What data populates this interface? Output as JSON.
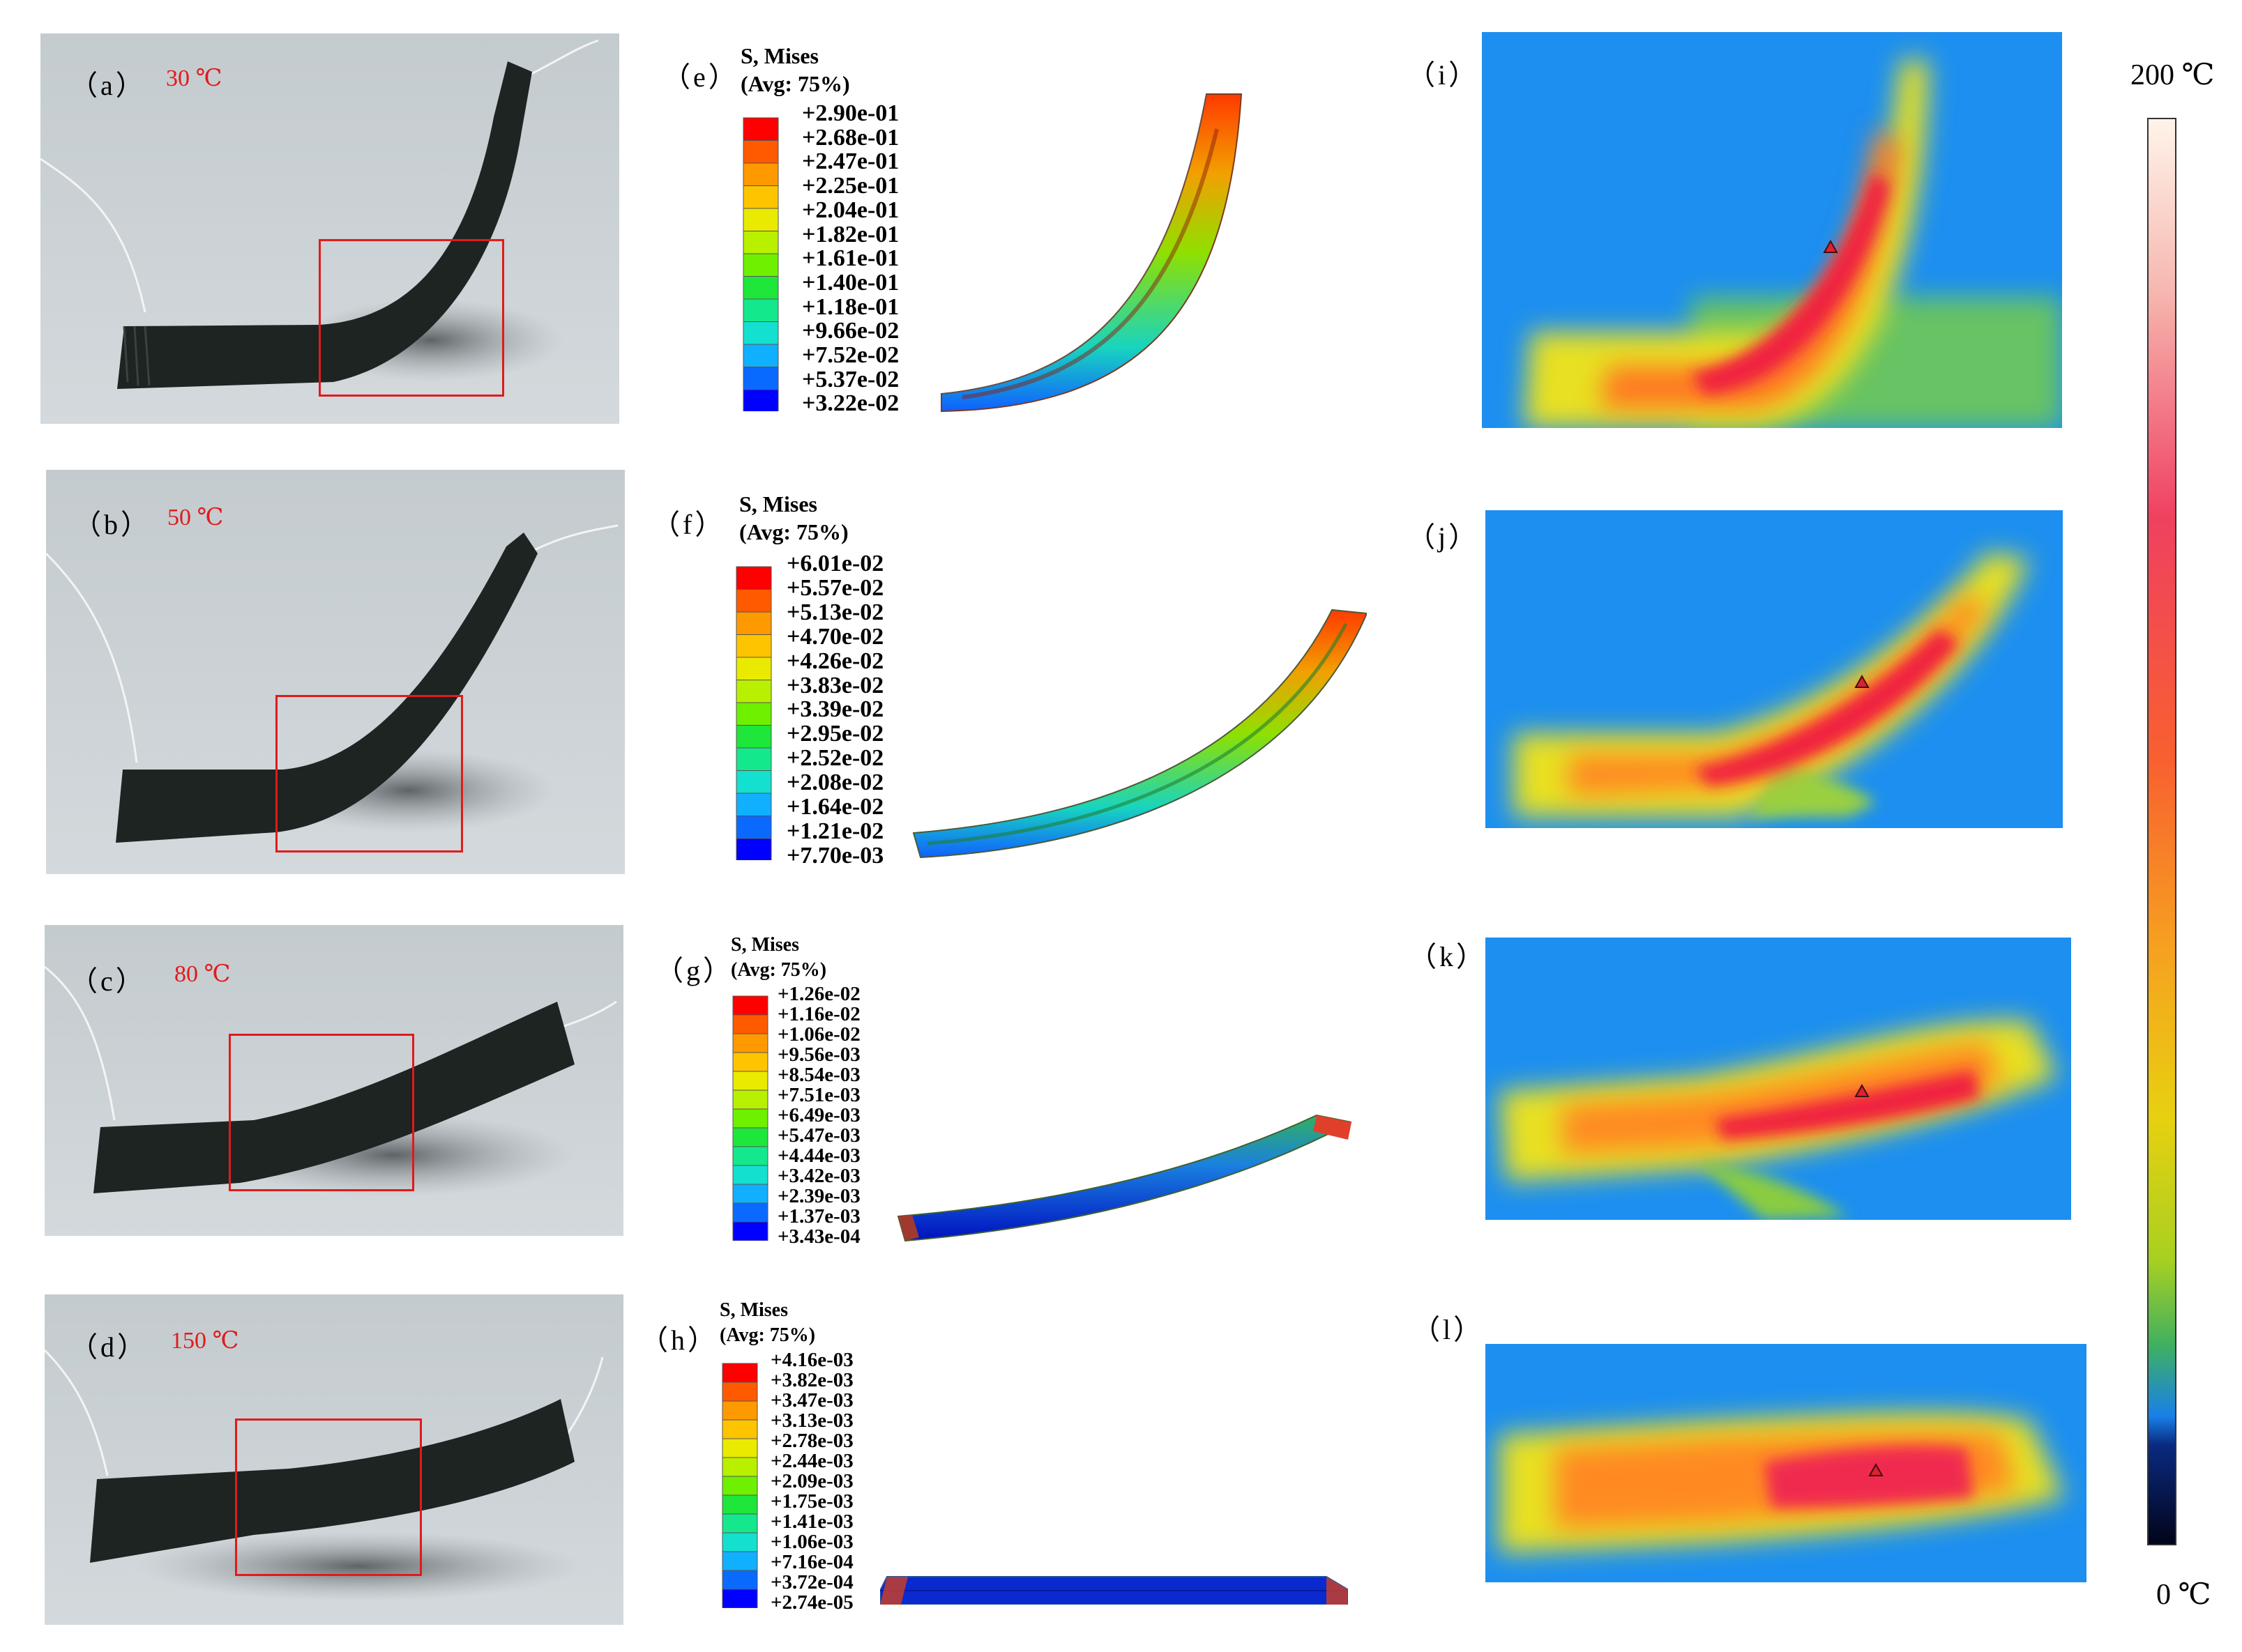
{
  "bar": {
    "max_label": "200 ℃",
    "min_label": "0 ℃"
  },
  "photos": [
    {
      "label": "（a）",
      "temp": "30 ℃"
    },
    {
      "label": "（b）",
      "temp": "50 ℃"
    },
    {
      "label": "（c）",
      "temp": "80 ℃"
    },
    {
      "label": "（d）",
      "temp": "150 ℃"
    }
  ],
  "fem": [
    {
      "label": "（e）",
      "title1": "S, Mises",
      "title2": "(Avg: 75%)",
      "values": [
        "+2.90e-01",
        "+2.68e-01",
        "+2.47e-01",
        "+2.25e-01",
        "+2.04e-01",
        "+1.82e-01",
        "+1.61e-01",
        "+1.40e-01",
        "+1.18e-01",
        "+9.66e-02",
        "+7.52e-02",
        "+5.37e-02",
        "+3.22e-02"
      ]
    },
    {
      "label": "（f）",
      "title1": "S, Mises",
      "title2": "(Avg: 75%)",
      "values": [
        "+6.01e-02",
        "+5.57e-02",
        "+5.13e-02",
        "+4.70e-02",
        "+4.26e-02",
        "+3.83e-02",
        "+3.39e-02",
        "+2.95e-02",
        "+2.52e-02",
        "+2.08e-02",
        "+1.64e-02",
        "+1.21e-02",
        "+7.70e-03"
      ]
    },
    {
      "label": "（g）",
      "title1": "S, Mises",
      "title2": "(Avg: 75%)",
      "values": [
        "+1.26e-02",
        "+1.16e-02",
        "+1.06e-02",
        "+9.56e-03",
        "+8.54e-03",
        "+7.51e-03",
        "+6.49e-03",
        "+5.47e-03",
        "+4.44e-03",
        "+3.42e-03",
        "+2.39e-03",
        "+1.37e-03",
        "+3.43e-04"
      ]
    },
    {
      "label": "（h）",
      "title1": "S, Mises",
      "title2": "(Avg: 75%)",
      "values": [
        "+4.16e-03",
        "+3.82e-03",
        "+3.47e-03",
        "+3.13e-03",
        "+2.78e-03",
        "+2.44e-03",
        "+2.09e-03",
        "+1.75e-03",
        "+1.41e-03",
        "+1.06e-03",
        "+7.16e-04",
        "+3.72e-04",
        "+2.74e-05"
      ]
    }
  ],
  "thermal": [
    {
      "label": "（i）"
    },
    {
      "label": "（j）"
    },
    {
      "label": "（k）"
    },
    {
      "label": "（l）"
    }
  ],
  "colors": {
    "legend": [
      "#ff0000",
      "#ff5a00",
      "#ff9900",
      "#ffc400",
      "#eaea00",
      "#b8f000",
      "#6ef000",
      "#1fe63a",
      "#14e88c",
      "#14e0d0",
      "#10b0ff",
      "#0a6aff",
      "#0000ff"
    ],
    "thermal_bg": "#1c8ff0",
    "red_box": "#e01b1b"
  }
}
